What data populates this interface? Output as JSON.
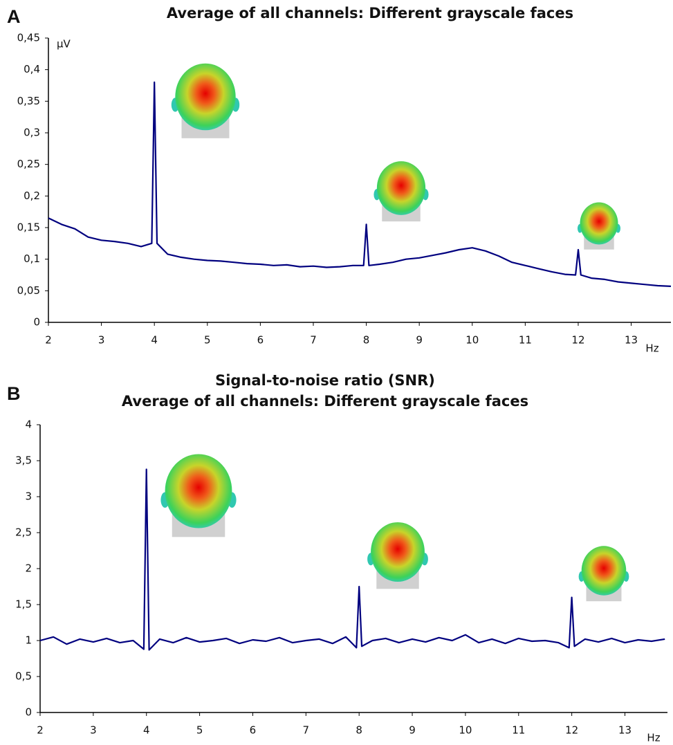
{
  "chart_data": [
    {
      "type": "line",
      "panel_label": "A",
      "title": "Average of all channels: Different grayscale faces",
      "y_unit": "μV",
      "x_unit": "Hz",
      "color": "#00007f",
      "x": [
        2,
        2.25,
        2.5,
        2.75,
        3,
        3.25,
        3.5,
        3.75,
        3.95,
        4,
        4.05,
        4.25,
        4.5,
        4.75,
        5,
        5.25,
        5.5,
        5.75,
        6,
        6.25,
        6.5,
        6.75,
        7,
        7.25,
        7.5,
        7.75,
        7.95,
        8,
        8.05,
        8.25,
        8.5,
        8.75,
        9,
        9.25,
        9.5,
        9.75,
        10,
        10.25,
        10.5,
        10.75,
        11,
        11.25,
        11.5,
        11.75,
        11.95,
        12,
        12.05,
        12.25,
        12.5,
        12.75,
        13,
        13.25,
        13.5,
        13.75
      ],
      "values": [
        0.165,
        0.155,
        0.148,
        0.135,
        0.13,
        0.128,
        0.125,
        0.12,
        0.125,
        0.38,
        0.125,
        0.108,
        0.103,
        0.1,
        0.098,
        0.097,
        0.095,
        0.093,
        0.092,
        0.09,
        0.091,
        0.088,
        0.089,
        0.087,
        0.088,
        0.09,
        0.09,
        0.155,
        0.09,
        0.092,
        0.095,
        0.1,
        0.102,
        0.106,
        0.11,
        0.115,
        0.118,
        0.113,
        0.105,
        0.095,
        0.09,
        0.085,
        0.08,
        0.076,
        0.075,
        0.115,
        0.075,
        0.07,
        0.068,
        0.064,
        0.062,
        0.06,
        0.058,
        0.057
      ],
      "xlim": [
        2,
        13.75
      ],
      "xticks": [
        2,
        3,
        4,
        5,
        6,
        7,
        8,
        9,
        10,
        11,
        12,
        13
      ],
      "ylim": [
        0,
        0.45
      ],
      "yticks": [
        0,
        {
          "value": 0.05,
          "label": "0,05"
        },
        {
          "value": 0.1,
          "label": "0,1"
        },
        {
          "value": 0.15,
          "label": "0,15"
        },
        {
          "value": 0.2,
          "label": "0,2"
        },
        {
          "value": 0.25,
          "label": "0,25"
        },
        {
          "value": 0.3,
          "label": "0,3"
        },
        {
          "value": 0.35,
          "label": "0,35"
        },
        {
          "value": 0.4,
          "label": "0,4"
        },
        {
          "value": 0.45,
          "label": "0,45"
        }
      ],
      "grid": false
    },
    {
      "type": "line",
      "panel_label": "B",
      "title": "Signal-to-noise ratio (SNR)",
      "subtitle": "Average of all channels: Different grayscale faces",
      "x_unit": "Hz",
      "color": "#00007f",
      "x": [
        2,
        2.25,
        2.5,
        2.75,
        3,
        3.25,
        3.5,
        3.75,
        3.95,
        4,
        4.05,
        4.25,
        4.5,
        4.75,
        5,
        5.25,
        5.5,
        5.75,
        6,
        6.25,
        6.5,
        6.75,
        7,
        7.25,
        7.5,
        7.75,
        7.95,
        8,
        8.05,
        8.25,
        8.5,
        8.75,
        9,
        9.25,
        9.5,
        9.75,
        10,
        10.25,
        10.5,
        10.75,
        11,
        11.25,
        11.5,
        11.75,
        11.95,
        12,
        12.05,
        12.25,
        12.5,
        12.75,
        13,
        13.25,
        13.5,
        13.75
      ],
      "values": [
        1.0,
        1.05,
        0.95,
        1.02,
        0.98,
        1.03,
        0.97,
        1.0,
        0.88,
        3.38,
        0.87,
        1.02,
        0.97,
        1.04,
        0.98,
        1.0,
        1.03,
        0.96,
        1.01,
        0.99,
        1.04,
        0.97,
        1.0,
        1.02,
        0.96,
        1.05,
        0.9,
        1.75,
        0.92,
        1.0,
        1.03,
        0.97,
        1.02,
        0.98,
        1.04,
        1.0,
        1.08,
        0.97,
        1.02,
        0.96,
        1.03,
        0.99,
        1.0,
        0.97,
        0.9,
        1.6,
        0.92,
        1.02,
        0.98,
        1.03,
        0.97,
        1.01,
        0.99,
        1.02
      ],
      "xlim": [
        2,
        13.8
      ],
      "xticks": [
        2,
        3,
        4,
        5,
        6,
        7,
        8,
        9,
        10,
        11,
        12,
        13
      ],
      "ylim": [
        0,
        4
      ],
      "yticks": [
        0,
        {
          "value": 0.5,
          "label": "0,5"
        },
        1,
        {
          "value": 1.5,
          "label": "1,5"
        },
        2,
        {
          "value": 2.5,
          "label": "2,5"
        },
        3,
        {
          "value": 3.5,
          "label": "3,5"
        },
        4
      ],
      "grid": false
    }
  ]
}
